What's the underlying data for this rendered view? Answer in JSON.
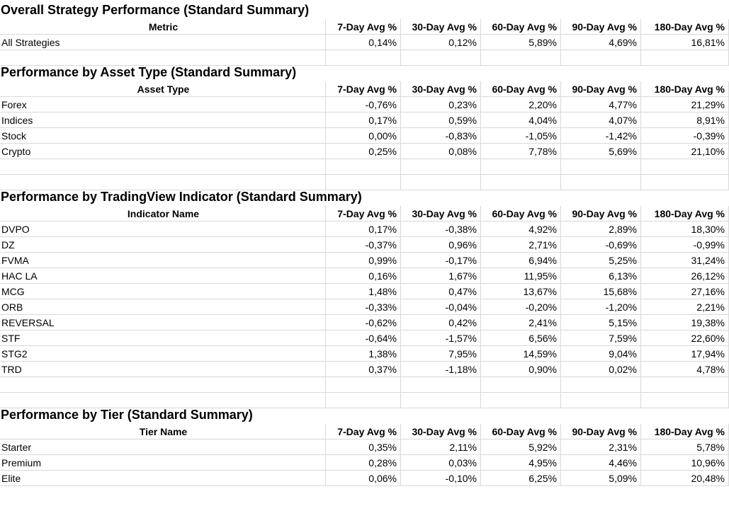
{
  "columns": [
    "7-Day Avg %",
    "30-Day Avg %",
    "60-Day Avg %",
    "90-Day Avg %",
    "180-Day Avg %"
  ],
  "sections": [
    {
      "title": "Overall Strategy Performance (Standard Summary)",
      "first_header": "Metric",
      "rows": [
        {
          "name": "All Strategies",
          "values": [
            "0,14%",
            "0,12%",
            "5,89%",
            "4,69%",
            "16,81%"
          ]
        }
      ]
    },
    {
      "title": "Performance by Asset Type (Standard Summary)",
      "first_header": "Asset Type",
      "rows": [
        {
          "name": "Forex",
          "values": [
            "-0,76%",
            "0,23%",
            "2,20%",
            "4,77%",
            "21,29%"
          ]
        },
        {
          "name": "Indices",
          "values": [
            "0,17%",
            "0,59%",
            "4,04%",
            "4,07%",
            "8,91%"
          ]
        },
        {
          "name": "Stock",
          "values": [
            "0,00%",
            "-0,83%",
            "-1,05%",
            "-1,42%",
            "-0,39%"
          ]
        },
        {
          "name": "Crypto",
          "values": [
            "0,25%",
            "0,08%",
            "7,78%",
            "5,69%",
            "21,10%"
          ]
        }
      ]
    },
    {
      "title": "Performance by TradingView Indicator (Standard Summary)",
      "first_header": "Indicator Name",
      "rows": [
        {
          "name": "DVPO",
          "values": [
            "0,17%",
            "-0,38%",
            "4,92%",
            "2,89%",
            "18,30%"
          ]
        },
        {
          "name": "DZ",
          "values": [
            "-0,37%",
            "0,96%",
            "2,71%",
            "-0,69%",
            "-0,99%"
          ]
        },
        {
          "name": "FVMA",
          "values": [
            "0,99%",
            "-0,17%",
            "6,94%",
            "5,25%",
            "31,24%"
          ]
        },
        {
          "name": "HAC LA",
          "values": [
            "0,16%",
            "1,67%",
            "11,95%",
            "6,13%",
            "26,12%"
          ]
        },
        {
          "name": "MCG",
          "values": [
            "1,48%",
            "0,47%",
            "13,67%",
            "15,68%",
            "27,16%"
          ]
        },
        {
          "name": "ORB",
          "values": [
            "-0,33%",
            "-0,04%",
            "-0,20%",
            "-1,20%",
            "2,21%"
          ]
        },
        {
          "name": "REVERSAL",
          "values": [
            "-0,62%",
            "0,42%",
            "2,41%",
            "5,15%",
            "19,38%"
          ]
        },
        {
          "name": "STF",
          "values": [
            "-0,64%",
            "-1,57%",
            "6,56%",
            "7,59%",
            "22,60%"
          ]
        },
        {
          "name": "STG2",
          "values": [
            "1,38%",
            "7,95%",
            "14,59%",
            "9,04%",
            "17,94%"
          ]
        },
        {
          "name": "TRD",
          "values": [
            "0,37%",
            "-1,18%",
            "0,90%",
            "0,02%",
            "4,78%"
          ]
        }
      ]
    },
    {
      "title": "Performance by Tier (Standard Summary)",
      "first_header": "Tier Name",
      "rows": [
        {
          "name": "Starter",
          "values": [
            "0,35%",
            "2,11%",
            "5,92%",
            "2,31%",
            "5,78%"
          ]
        },
        {
          "name": "Premium",
          "values": [
            "0,28%",
            "0,03%",
            "4,95%",
            "4,46%",
            "10,96%"
          ]
        },
        {
          "name": "Elite",
          "values": [
            "0,06%",
            "-0,10%",
            "6,25%",
            "5,09%",
            "20,48%"
          ]
        }
      ]
    }
  ]
}
